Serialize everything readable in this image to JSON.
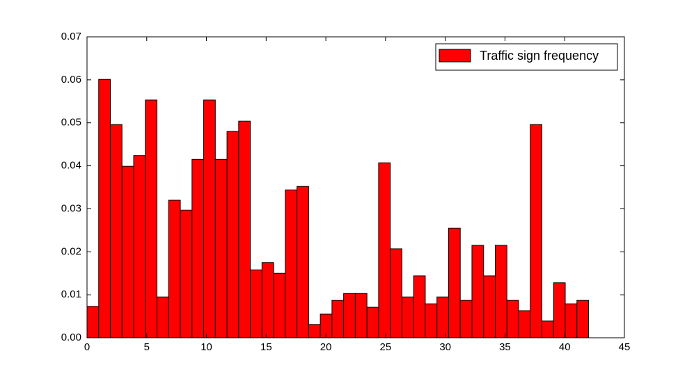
{
  "chart_data": {
    "type": "histogram",
    "bins": [
      0,
      0.977,
      1.953,
      2.93,
      3.907,
      4.884,
      5.86,
      6.837,
      7.814,
      8.791,
      9.767,
      10.744,
      11.721,
      12.698,
      13.674,
      14.651,
      15.628,
      16.605,
      17.581,
      18.558,
      19.535,
      20.512,
      21.488,
      22.465,
      23.442,
      24.419,
      25.395,
      26.372,
      27.349,
      28.326,
      29.302,
      30.279,
      31.256,
      32.233,
      33.209,
      34.186,
      35.163,
      36.14,
      37.116,
      38.093,
      39.07,
      40.047,
      41.023,
      42
    ],
    "series": [
      {
        "name": "Traffic sign frequency",
        "color": "#ff0000",
        "values": [
          0.0073,
          0.0601,
          0.0496,
          0.0399,
          0.0424,
          0.0553,
          0.0095,
          0.032,
          0.0297,
          0.0415,
          0.0553,
          0.0415,
          0.048,
          0.0504,
          0.0158,
          0.0175,
          0.015,
          0.0344,
          0.0352,
          0.0031,
          0.0055,
          0.0087,
          0.0103,
          0.0103,
          0.0071,
          0.0407,
          0.0207,
          0.0095,
          0.0144,
          0.0079,
          0.0095,
          0.0255,
          0.0087,
          0.0215,
          0.0144,
          0.0215,
          0.0087,
          0.0063,
          0.0496,
          0.0039,
          0.0128,
          0.0079,
          0.0087
        ]
      }
    ],
    "xlim": [
      0,
      45
    ],
    "xticks": [
      0,
      5,
      10,
      15,
      20,
      25,
      30,
      35,
      40,
      45
    ],
    "ylim": [
      0,
      0.07
    ],
    "yticks": [
      {
        "value": 0,
        "label": "0.00"
      },
      {
        "value": 0.01,
        "label": "0.01"
      },
      {
        "value": 0.02,
        "label": "0.02"
      },
      {
        "value": 0.03,
        "label": "0.03"
      },
      {
        "value": 0.04,
        "label": "0.04"
      },
      {
        "value": 0.05,
        "label": "0.05"
      },
      {
        "value": 0.06,
        "label": "0.06"
      },
      {
        "value": 0.07,
        "label": "0.07"
      }
    ],
    "legend": "upper right",
    "grid": false
  }
}
